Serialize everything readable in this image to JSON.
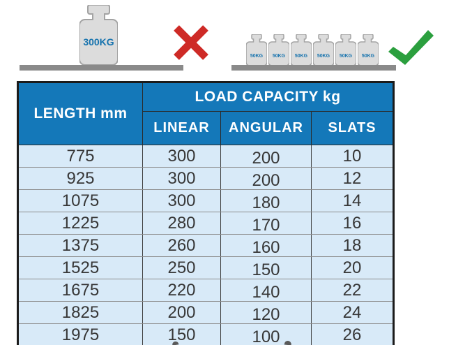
{
  "illustration": {
    "incorrect": {
      "weight_label": "300KG",
      "mark": "x-mark"
    },
    "correct": {
      "weights": [
        "50KG",
        "50KG",
        "50KG",
        "50KG",
        "50KG",
        "50KG"
      ],
      "mark": "check-mark"
    }
  },
  "table": {
    "header": {
      "length": "LENGTH mm",
      "load_capacity": "LOAD CAPACITY kg",
      "sub_columns": [
        "LINEAR",
        "ANGULAR",
        "SLATS"
      ]
    },
    "rows": [
      [
        775,
        300,
        200,
        10
      ],
      [
        925,
        300,
        200,
        12
      ],
      [
        1075,
        300,
        180,
        14
      ],
      [
        1225,
        280,
        170,
        16
      ],
      [
        1375,
        260,
        160,
        18
      ],
      [
        1525,
        250,
        150,
        20
      ],
      [
        1675,
        220,
        140,
        22
      ],
      [
        1825,
        200,
        120,
        24
      ],
      [
        1975,
        150,
        100,
        26
      ]
    ]
  },
  "colors": {
    "header_blue": "#1478b9",
    "row_blue": "#d8eaf8",
    "x_red": "#ce2a26",
    "check_green": "#2b9f3e",
    "weight_fill": "#dcdcdc",
    "weight_outline": "#a3a3a3",
    "weight_text_blue": "#1673ae",
    "shelf_gray": "#8a8a8a"
  },
  "chart_data": {
    "type": "table",
    "title": "LOAD CAPACITY kg",
    "columns": [
      "LENGTH mm",
      "LINEAR",
      "ANGULAR",
      "SLATS"
    ],
    "rows": [
      [
        775,
        300,
        200,
        10
      ],
      [
        925,
        300,
        200,
        12
      ],
      [
        1075,
        300,
        180,
        14
      ],
      [
        1225,
        280,
        170,
        16
      ],
      [
        1375,
        260,
        160,
        18
      ],
      [
        1525,
        250,
        150,
        20
      ],
      [
        1675,
        220,
        140,
        22
      ],
      [
        1825,
        200,
        120,
        24
      ],
      [
        1975,
        150,
        100,
        26
      ]
    ]
  }
}
